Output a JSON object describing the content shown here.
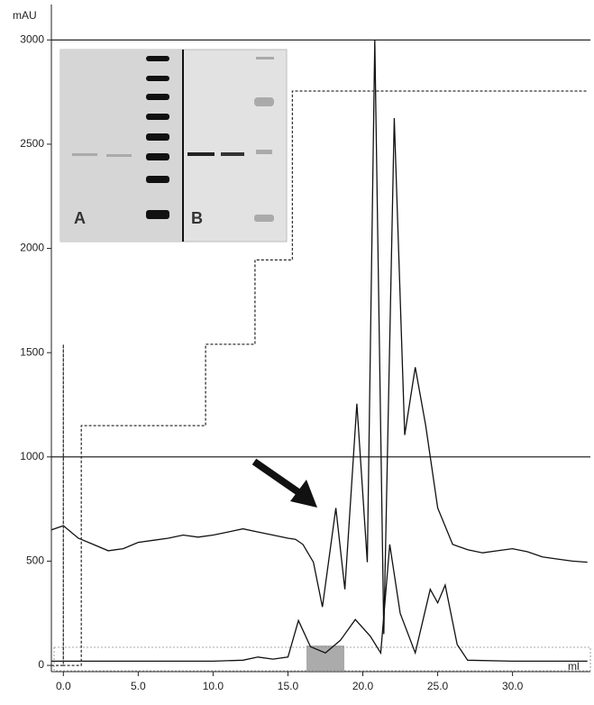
{
  "chart_data": {
    "type": "line",
    "y_label": "mAU",
    "x_label": "ml",
    "xlim": [
      -0.8,
      35.2
    ],
    "ylim": [
      -30,
      3170
    ],
    "xticks": [
      {
        "value": 0,
        "label": "0.0"
      },
      {
        "value": 5,
        "label": "5.0"
      },
      {
        "value": 10,
        "label": "10.0"
      },
      {
        "value": 15,
        "label": "15.0"
      },
      {
        "value": 20,
        "label": "20.0"
      },
      {
        "value": 25,
        "label": "25.0"
      },
      {
        "value": 30,
        "label": "30.0"
      }
    ],
    "yticks": [
      0,
      500,
      1000,
      1500,
      2000,
      2500,
      3000
    ],
    "reference_lines": [
      1000,
      3000
    ],
    "series": [
      {
        "color": "#111111",
        "style": "solid",
        "x": [
          -0.8,
          0,
          1,
          2,
          3,
          4,
          5,
          6,
          7,
          8,
          9,
          10,
          11,
          12,
          13,
          14,
          15,
          15.5,
          16,
          16.7,
          17.3,
          18.2,
          18.8,
          19.6,
          20.3,
          20.8,
          21.4,
          22.1,
          22.8,
          23.5,
          24.2,
          25,
          26,
          27,
          28,
          29,
          30,
          31,
          32,
          33,
          34,
          35
        ],
        "values": [
          650,
          670,
          610,
          580,
          550,
          560,
          590,
          600,
          610,
          625,
          615,
          625,
          640,
          655,
          640,
          625,
          610,
          605,
          580,
          495,
          280,
          755,
          365,
          1255,
          495,
          3000,
          150,
          2625,
          1105,
          1430,
          1150,
          755,
          580,
          555,
          540,
          550,
          560,
          545,
          520,
          510,
          500,
          495
        ]
      },
      {
        "color": "#111111",
        "style": "solid",
        "x": [
          -0.8,
          0,
          5,
          10,
          12,
          13,
          14,
          15,
          15.7,
          16.5,
          17.5,
          18.5,
          19.5,
          20.5,
          21.2,
          21.8,
          22.5,
          23.5,
          24.5,
          25,
          25.5,
          26.3,
          27,
          30,
          35
        ],
        "values": [
          20,
          20,
          20,
          20,
          25,
          40,
          30,
          40,
          215,
          90,
          60,
          120,
          220,
          140,
          60,
          580,
          250,
          60,
          365,
          300,
          385,
          100,
          25,
          20,
          20
        ]
      },
      {
        "color": "#333333",
        "style": "dashed",
        "x": [
          -0.8,
          0,
          0,
          0,
          1.2,
          1.2,
          9.5,
          9.5,
          12.8,
          12.8,
          15.3,
          15.3,
          35
        ],
        "values": [
          0,
          0,
          1540,
          0,
          0,
          1150,
          1150,
          1540,
          1540,
          1945,
          1945,
          2755,
          2755
        ]
      }
    ],
    "inset": {
      "label_a": "A",
      "label_b": "B"
    }
  }
}
